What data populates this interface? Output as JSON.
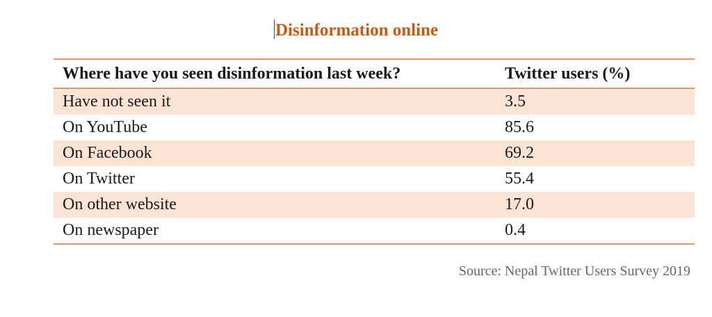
{
  "title": "Disinformation online",
  "table": {
    "headers": [
      "Where have you seen disinformation last week?",
      "Twitter users (%)"
    ],
    "rows": [
      {
        "label": "Have not seen it",
        "value": "3.5"
      },
      {
        "label": "On YouTube",
        "value": "85.6"
      },
      {
        "label": "On Facebook",
        "value": "69.2"
      },
      {
        "label": "On Twitter",
        "value": "55.4"
      },
      {
        "label": "On other website",
        "value": "17.0"
      },
      {
        "label": "On newspaper",
        "value": "0.4"
      }
    ]
  },
  "source": "Source: Nepal Twitter Users Survey 2019",
  "colors": {
    "title": "#c55a11",
    "rule": "#e9955a",
    "shade": "#fbe4d5"
  }
}
